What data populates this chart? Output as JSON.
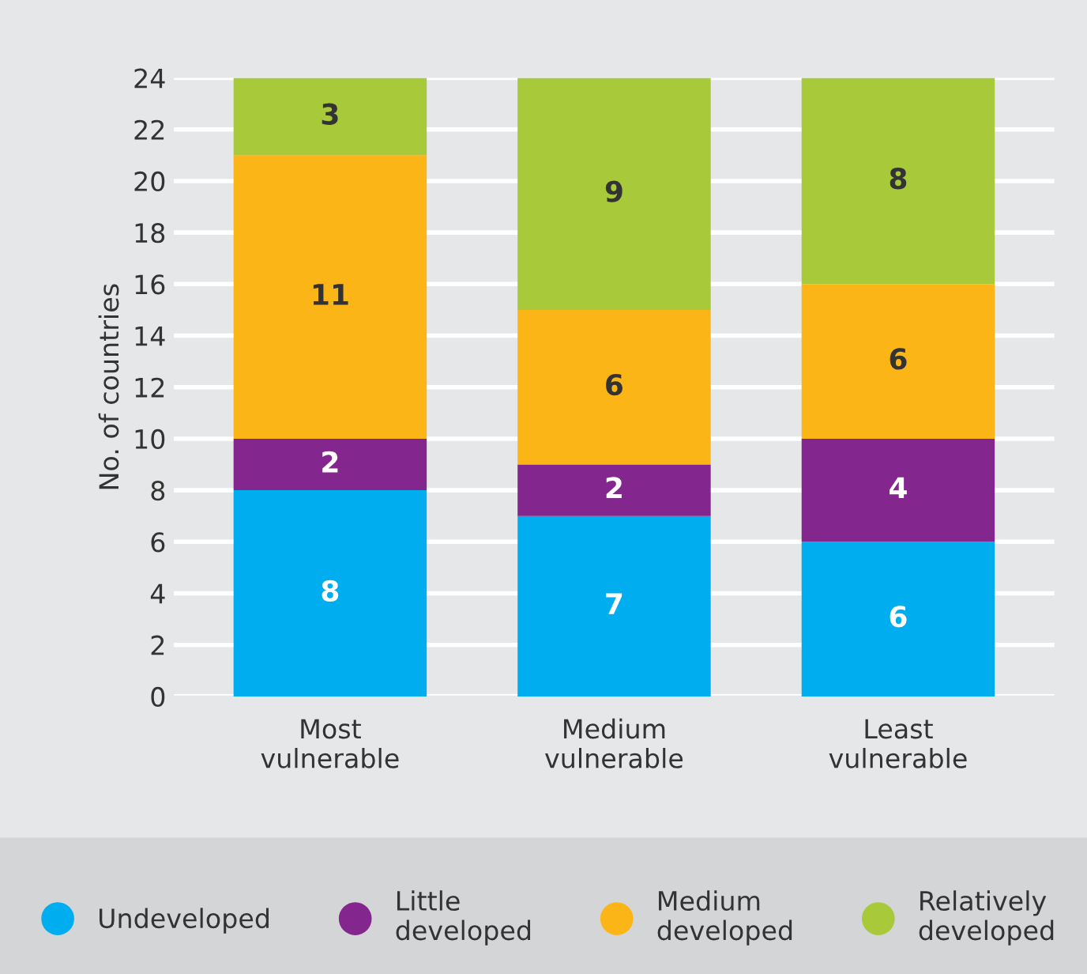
{
  "chart_data": {
    "type": "bar",
    "stacked": true,
    "ylabel": "No. of countries",
    "categories": [
      "Most\nvulnerable",
      "Medium\nvulnerable",
      "Least\nvulnerable"
    ],
    "series": [
      {
        "name": "Undeveloped",
        "color": "#00aeef",
        "values": [
          8,
          7,
          6
        ]
      },
      {
        "name": "Little\ndeveloped",
        "color": "#83278f",
        "values": [
          2,
          2,
          4
        ]
      },
      {
        "name": "Medium\ndeveloped",
        "color": "#fbb516",
        "values": [
          11,
          6,
          6
        ]
      },
      {
        "name": "Relatively\ndeveloped",
        "color": "#a8c93a",
        "values": [
          3,
          9,
          8
        ]
      }
    ],
    "data_labels": true,
    "ylim": [
      0,
      24
    ],
    "yticks": [
      0,
      2,
      4,
      6,
      8,
      10,
      12,
      14,
      16,
      18,
      20,
      22,
      24
    ],
    "grid": "y",
    "legend": "bottom"
  }
}
